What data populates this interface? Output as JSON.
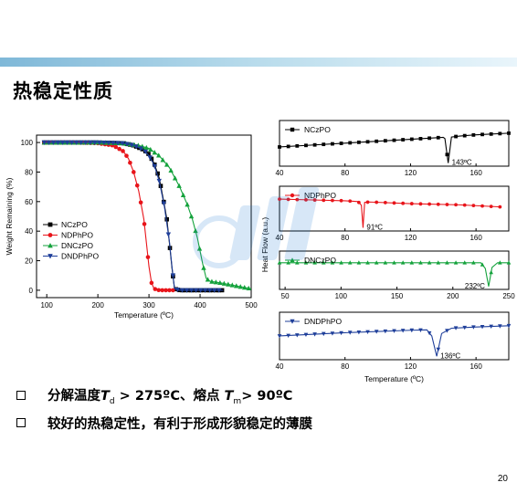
{
  "slide": {
    "title": "热稳定性质",
    "page_number": "20",
    "bullets": [
      {
        "pre": "分解温度",
        "var": "T",
        "sub": "d",
        "post": " > 275ºC、熔点 ",
        "var2": "T",
        "sub2": "m",
        "post2": "> 90ºC"
      },
      {
        "text": "较好的热稳定性，有利于形成形貌稳定的薄膜"
      }
    ],
    "colors": {
      "NCzPO": "#000000",
      "NDPhPO": "#e8141a",
      "DNCzPO": "#14a23c",
      "DNDPhPO": "#1f3f9a",
      "topbar": "#8cc3de"
    }
  },
  "chart_data": [
    {
      "type": "line",
      "xlabel": "Temperature (ºC)",
      "ylabel": "Weight Remaining (%)",
      "xlim": [
        80,
        500
      ],
      "ylim": [
        -5,
        105
      ],
      "xticks": [
        100,
        200,
        300,
        400,
        500
      ],
      "yticks": [
        0,
        20,
        40,
        60,
        80,
        100
      ],
      "legend_position": "left-middle",
      "series": [
        {
          "name": "NCzPO",
          "color": "#000000",
          "marker": "square",
          "x": [
            95,
            150,
            200,
            250,
            270,
            290,
            300,
            310,
            320,
            330,
            335,
            340,
            345,
            350,
            360,
            380,
            420,
            445
          ],
          "y": [
            100,
            100,
            100,
            99.5,
            98,
            95,
            92,
            86,
            76,
            58,
            48,
            32,
            15,
            1,
            0,
            0,
            0,
            0
          ]
        },
        {
          "name": "NDPhPO",
          "color": "#e8141a",
          "marker": "circle",
          "x": [
            95,
            150,
            200,
            230,
            250,
            260,
            270,
            280,
            290,
            295,
            300,
            305,
            310,
            320,
            330,
            350
          ],
          "y": [
            100,
            100,
            99.5,
            98,
            94,
            89,
            80,
            67,
            48,
            32,
            16,
            5,
            1,
            0,
            0,
            0
          ]
        },
        {
          "name": "DNCzPO",
          "color": "#14a23c",
          "marker": "triangle",
          "x": [
            95,
            150,
            200,
            250,
            280,
            300,
            320,
            340,
            360,
            375,
            385,
            395,
            405,
            412,
            420,
            440,
            470,
            500
          ],
          "y": [
            100,
            100,
            100,
            99.5,
            98,
            96,
            91,
            83,
            70,
            58,
            48,
            35,
            18,
            8,
            6,
            5,
            3,
            1
          ]
        },
        {
          "name": "DNDPhPO",
          "color": "#1f3f9a",
          "marker": "triangle-down",
          "x": [
            95,
            150,
            200,
            250,
            270,
            290,
            300,
            310,
            320,
            330,
            340,
            345,
            350,
            360,
            380,
            420,
            445
          ],
          "y": [
            100,
            100,
            100,
            99.5,
            98,
            95,
            91,
            85,
            74,
            57,
            33,
            16,
            1,
            0,
            0,
            0,
            0
          ]
        }
      ]
    },
    {
      "type": "line",
      "xlabel": "Temperature (ºC)",
      "ylabel": "Heat Flow (a.u.)",
      "panels": [
        {
          "name": "NCzPO",
          "color": "#000000",
          "marker": "square",
          "xlim": [
            40,
            180
          ],
          "xticks": [
            40,
            80,
            120,
            160
          ],
          "annotation": "143ºC",
          "x": [
            40,
            60,
            80,
            100,
            120,
            140,
            141,
            143,
            145,
            150,
            160,
            180
          ],
          "y": [
            0,
            0.6,
            1.2,
            1.8,
            2.4,
            3.0,
            2.6,
            -5,
            3.1,
            3.4,
            3.8,
            4.3
          ]
        },
        {
          "name": "NDPhPO",
          "color": "#e8141a",
          "marker": "circle",
          "xlim": [
            40,
            180
          ],
          "xticks": [
            40,
            80,
            120,
            160
          ],
          "annotation": "91ºC",
          "x": [
            40,
            60,
            80,
            88,
            90,
            91,
            92,
            95,
            120,
            150,
            175
          ],
          "y": [
            3,
            2.8,
            2.6,
            2.4,
            1.5,
            -4,
            2.2,
            2.3,
            1.9,
            1.6,
            1.1
          ]
        },
        {
          "name": "DNCzPO",
          "color": "#14a23c",
          "marker": "triangle",
          "xlim": [
            45,
            250
          ],
          "xticks": [
            50,
            100,
            150,
            200,
            250
          ],
          "annotation": "232ºC",
          "x": [
            45,
            100,
            150,
            200,
            225,
            229,
            232,
            235,
            240,
            250
          ],
          "y": [
            0,
            0,
            0,
            0,
            0,
            -1.2,
            -5,
            -1,
            0,
            0
          ]
        },
        {
          "name": "DNDPhPO",
          "color": "#1f3f9a",
          "marker": "triangle-down",
          "xlim": [
            40,
            180
          ],
          "xticks": [
            40,
            80,
            120,
            160
          ],
          "annotation": "136ºC",
          "x": [
            40,
            80,
            120,
            130,
            133,
            136,
            139,
            145,
            160,
            180
          ],
          "y": [
            0,
            0.8,
            1.4,
            1.5,
            0,
            -5,
            0.6,
            1.9,
            2.2,
            2.5
          ]
        }
      ]
    }
  ]
}
